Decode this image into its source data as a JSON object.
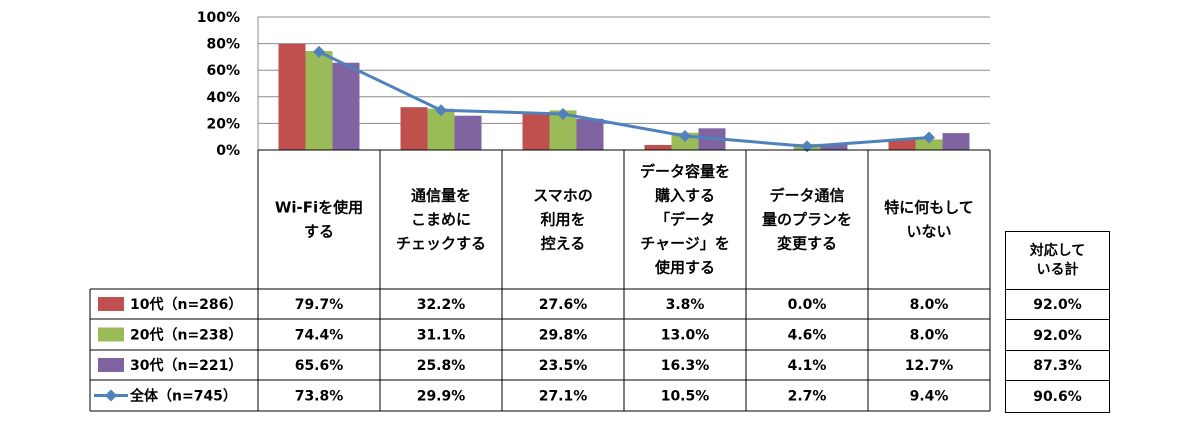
{
  "chart_data": {
    "type": "bar",
    "categories": [
      "Wi-Fiを使用\nする",
      "通信量を\nこまめに\nチェックする",
      "スマホの\n利用を\n控える",
      "データ容量を\n購入する\n「データ\nチャージ」を\n使用する",
      "データ通信\n量のプランを\n変更する",
      "特に何もして\nいない"
    ],
    "series": [
      {
        "name": "10代（n=286）",
        "kind": "bar",
        "color": "#C0504D",
        "values": [
          79.7,
          32.2,
          27.6,
          3.8,
          0.0,
          8.0
        ],
        "labels": [
          "79.7%",
          "32.2%",
          "27.6%",
          "3.8%",
          "0.0%",
          "8.0%"
        ]
      },
      {
        "name": "20代（n=238）",
        "kind": "bar",
        "color": "#9BBB59",
        "values": [
          74.4,
          31.1,
          29.8,
          13.0,
          4.6,
          8.0
        ],
        "labels": [
          "74.4%",
          "31.1%",
          "29.8%",
          "13.0%",
          "4.6%",
          "8.0%"
        ]
      },
      {
        "name": "30代（n=221）",
        "kind": "bar",
        "color": "#8064A2",
        "values": [
          65.6,
          25.8,
          23.5,
          16.3,
          4.1,
          12.7
        ],
        "labels": [
          "65.6%",
          "25.8%",
          "23.5%",
          "16.3%",
          "4.1%",
          "12.7%"
        ]
      },
      {
        "name": "全体（n=745）",
        "kind": "line",
        "color": "#4F81BD",
        "values": [
          73.8,
          29.9,
          27.1,
          10.5,
          2.7,
          9.4
        ],
        "labels": [
          "73.8%",
          "29.9%",
          "27.1%",
          "10.5%",
          "2.7%",
          "9.4%"
        ]
      }
    ],
    "yticks": [
      "100%",
      "80%",
      "60%",
      "40%",
      "20%",
      "0%"
    ],
    "ylim": [
      0,
      100
    ],
    "grid": true,
    "legend": "table-left",
    "totals": {
      "header": "対応して\nいる計",
      "values": [
        "92.0%",
        "92.0%",
        "87.3%",
        "90.6%"
      ]
    }
  }
}
